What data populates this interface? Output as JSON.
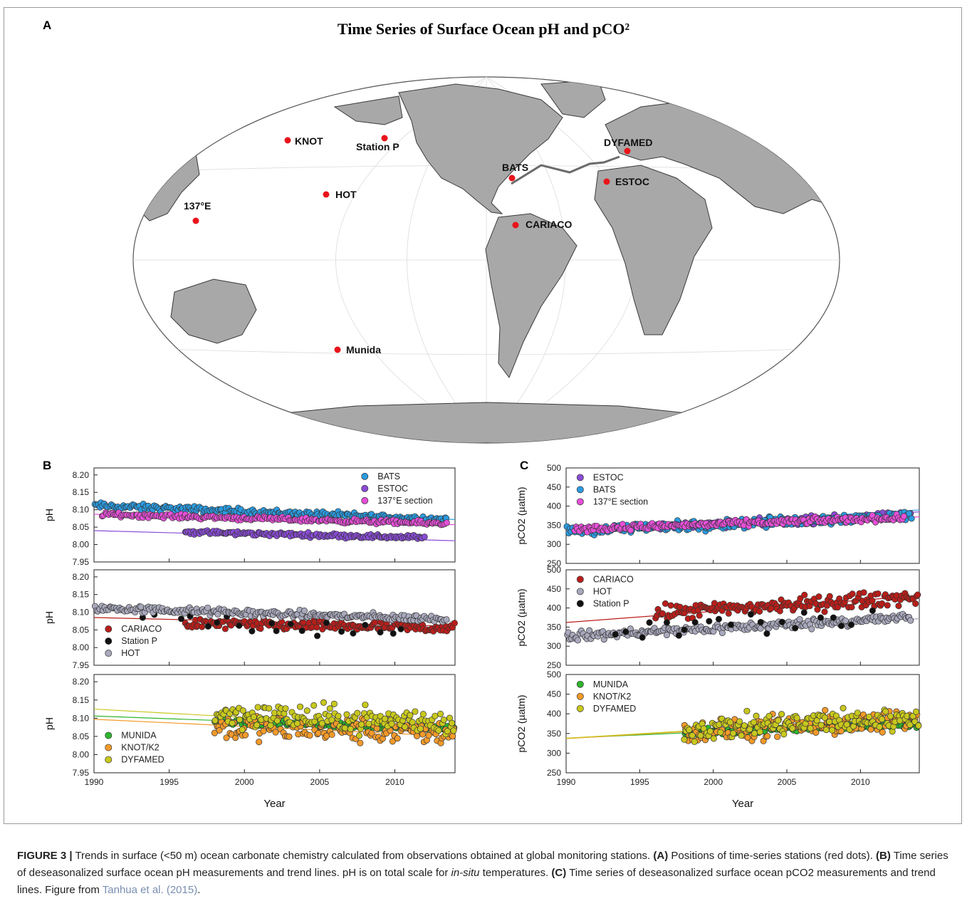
{
  "panel_labels": {
    "a": "A",
    "b": "B",
    "c": "C"
  },
  "map": {
    "title": "Time Series of Surface Ocean pH and pCO²",
    "stations": [
      {
        "name": "KNOT",
        "key": "knot"
      },
      {
        "name": "Station P",
        "key": "stationp"
      },
      {
        "name": "DYFAMED",
        "key": "dyfamed"
      },
      {
        "name": "BATS",
        "key": "bats"
      },
      {
        "name": "ESTOC",
        "key": "estoc"
      },
      {
        "name": "HOT",
        "key": "hot"
      },
      {
        "name": "137°E",
        "key": "e137"
      },
      {
        "name": "CARIACO",
        "key": "cariaco"
      },
      {
        "name": "Munida",
        "key": "munida"
      }
    ],
    "station_color": "#e8141b"
  },
  "chart_data": [
    {
      "id": "B1",
      "type": "scatter",
      "ylabel": "pH",
      "ylim": [
        7.95,
        8.22
      ],
      "xlim": [
        1990,
        2014
      ],
      "yticks": [
        "8.20",
        "8.15",
        "8.10",
        "8.05",
        "8.00",
        "7.95"
      ],
      "grid": false,
      "legend": "top-right",
      "series": [
        {
          "name": "BATS",
          "color": "#2b9be0",
          "x_range": [
            1990,
            2013.5
          ],
          "mean_start": 8.112,
          "mean_end": 8.072,
          "spread": 0.009,
          "trend": [
            8.112,
            8.072
          ]
        },
        {
          "name": "ESTOC",
          "color": "#8a4cd6",
          "x_range": [
            1996,
            2012
          ],
          "mean_start": 8.036,
          "mean_end": 8.02,
          "spread": 0.006,
          "trend": [
            8.04,
            8.011
          ]
        },
        {
          "name": "137°E section",
          "color": "#e64fd8",
          "x_range": [
            1990.5,
            2013.5
          ],
          "mean_start": 8.087,
          "mean_end": 8.06,
          "spread": 0.006,
          "trend": [
            8.087,
            8.057
          ]
        }
      ]
    },
    {
      "id": "B2",
      "type": "scatter",
      "ylabel": "pH",
      "ylim": [
        7.95,
        8.22
      ],
      "xlim": [
        1990,
        2014
      ],
      "yticks": [
        "8.20",
        "8.15",
        "8.10",
        "8.05",
        "8.00",
        "7.95"
      ],
      "grid": false,
      "legend": "bottom-left",
      "series": [
        {
          "name": "CARIACO",
          "color": "#b81e1a",
          "x_range": [
            1996,
            2014
          ],
          "mean_start": 8.068,
          "mean_end": 8.055,
          "spread": 0.014,
          "trend": [
            8.085,
            8.06
          ]
        },
        {
          "name": "Station P",
          "color": "#111111",
          "x_range": [
            1993,
            2011
          ],
          "mean_start": 8.09,
          "mean_end": 8.03,
          "spread": 0.03,
          "trend": null
        },
        {
          "name": "HOT",
          "color": "#a9a9bd",
          "x_range": [
            1990,
            2013.5
          ],
          "mean_start": 8.112,
          "mean_end": 8.08,
          "spread": 0.01,
          "trend": [
            8.113,
            8.074
          ]
        }
      ]
    },
    {
      "id": "B3",
      "type": "scatter",
      "ylabel": "pH",
      "ylim": [
        7.95,
        8.22
      ],
      "xlim": [
        1990,
        2014
      ],
      "yticks": [
        "8.20",
        "8.15",
        "8.10",
        "8.05",
        "8.00",
        "7.95"
      ],
      "xticks": [
        "1990",
        "1995",
        "2000",
        "2005",
        "2010"
      ],
      "xlabel": "Year",
      "grid": false,
      "legend": "bottom-left",
      "series": [
        {
          "name": "MUNIDA",
          "color": "#2fb52f",
          "x_range": [
            1998,
            2014
          ],
          "mean_start": 8.092,
          "mean_end": 8.072,
          "spread": 0.008,
          "trend": [
            8.106,
            8.07
          ]
        },
        {
          "name": "KNOT/K2",
          "color": "#f39a2a",
          "x_range": [
            1998,
            2014
          ],
          "mean_start": 8.075,
          "mean_end": 8.06,
          "spread": 0.035,
          "trend": [
            8.097,
            8.05
          ]
        },
        {
          "name": "DYFAMED",
          "color": "#c8c81e",
          "x_range": [
            1998,
            2014
          ],
          "mean_start": 8.112,
          "mean_end": 8.088,
          "spread": 0.035,
          "trend": [
            8.125,
            8.07
          ]
        }
      ]
    },
    {
      "id": "C1",
      "type": "scatter",
      "ylabel": "pCO2 (µatm)",
      "ylim": [
        250,
        500
      ],
      "xlim": [
        1990,
        2014
      ],
      "yticks": [
        "500",
        "450",
        "400",
        "350",
        "300",
        "250"
      ],
      "grid": false,
      "legend": "top-left",
      "series": [
        {
          "name": "ESTOC",
          "color": "#8a4cd6",
          "x_range": [
            1995.5,
            2013.5
          ],
          "mean_start": 345,
          "mean_end": 375,
          "spread": 10,
          "trend": [
            335,
            385
          ]
        },
        {
          "name": "BATS",
          "color": "#2b9be0",
          "x_range": [
            1990,
            2013.5
          ],
          "mean_start": 335,
          "mean_end": 375,
          "spread": 13,
          "trend": [
            335,
            390
          ]
        },
        {
          "name": "137°E section",
          "color": "#e64fd8",
          "x_range": [
            1990.5,
            2013
          ],
          "mean_start": 340,
          "mean_end": 370,
          "spread": 8,
          "trend": [
            333,
            372
          ]
        }
      ]
    },
    {
      "id": "C2",
      "type": "scatter",
      "ylabel": "pCO2 (µatm)",
      "ylim": [
        250,
        500
      ],
      "xlim": [
        1990,
        2014
      ],
      "yticks": [
        "500",
        "450",
        "400",
        "350",
        "300",
        "250"
      ],
      "grid": false,
      "legend": "top-left",
      "series": [
        {
          "name": "CARIACO",
          "color": "#b81e1a",
          "x_range": [
            1996,
            2014
          ],
          "mean_start": 385,
          "mean_end": 430,
          "spread": 20,
          "trend": [
            362,
            432
          ]
        },
        {
          "name": "HOT",
          "color": "#a9a9bd",
          "x_range": [
            1990,
            2013.5
          ],
          "mean_start": 325,
          "mean_end": 375,
          "spread": 12,
          "trend": [
            322,
            372
          ]
        },
        {
          "name": "Station P",
          "color": "#111111",
          "x_range": [
            1993,
            2011
          ],
          "mean_start": 335,
          "mean_end": 380,
          "spread": 30,
          "trend": null
        }
      ]
    },
    {
      "id": "C3",
      "type": "scatter",
      "ylabel": "pCO2 (µatm)",
      "ylim": [
        250,
        500
      ],
      "xlim": [
        1990,
        2014
      ],
      "yticks": [
        "500",
        "450",
        "400",
        "350",
        "300",
        "250"
      ],
      "xticks": [
        "1990",
        "1995",
        "2000",
        "2005",
        "2010"
      ],
      "xlabel": "Year",
      "grid": false,
      "legend": "top-left",
      "series": [
        {
          "name": "MUNIDA",
          "color": "#2fb52f",
          "x_range": [
            1998,
            2014
          ],
          "mean_start": 352,
          "mean_end": 375,
          "spread": 8,
          "trend": [
            338,
            378
          ]
        },
        {
          "name": "KNOT/K2",
          "color": "#f39a2a",
          "x_range": [
            1998,
            2014
          ],
          "mean_start": 350,
          "mean_end": 385,
          "spread": 30,
          "trend": [
            337,
            390
          ]
        },
        {
          "name": "DYFAMED",
          "color": "#c8c81e",
          "x_range": [
            1998,
            2014
          ],
          "mean_start": 360,
          "mean_end": 390,
          "spread": 30,
          "trend": [
            338,
            392
          ]
        }
      ]
    }
  ],
  "caption": {
    "fig": "FIGURE 3 |",
    "text1": " Trends in surface (<50 m) ocean carbonate chemistry calculated from observations obtained at global monitoring stations. ",
    "a": "(A)",
    "text2": " Positions of time-series stations (red dots). ",
    "b": "(B)",
    "text3": " Time series of deseasonalized surface ocean pH measurements and trend lines. pH is on total scale for ",
    "insitu": "in-situ",
    "text4": " temperatures. ",
    "c": "(C)",
    "text5": " Time series of deseasonalized surface ocean pCO2 measurements and trend lines. Figure from ",
    "ref": "Tanhua et al. (2015)",
    "text6": "."
  }
}
